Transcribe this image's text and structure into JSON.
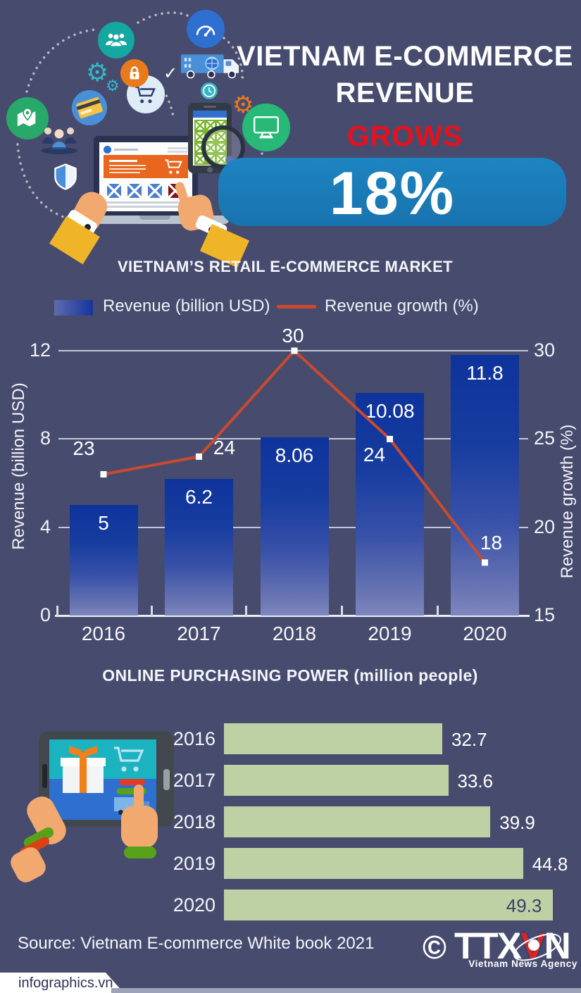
{
  "header": {
    "title_line1": "VIETNAM E-COMMERCE",
    "title_line2": "REVENUE",
    "grows": "GROWS",
    "rate": "18%"
  },
  "chart_data": [
    {
      "type": "bar+line",
      "title": "VIETNAM’S RETAIL E-COMMERCE MARKET",
      "categories": [
        "2016",
        "2017",
        "2018",
        "2019",
        "2020"
      ],
      "series": [
        {
          "name": "Revenue (billion USD)",
          "type": "bar",
          "axis": "left",
          "values": [
            5,
            6.2,
            8.06,
            10.08,
            11.8
          ],
          "labels": [
            "5",
            "6.2",
            "8.06",
            "10.08",
            "11.8"
          ],
          "color_top": "#0E339B",
          "color_bottom": "#7E87BD"
        },
        {
          "name": "Revenue growth (%)",
          "type": "line",
          "axis": "right",
          "values": [
            23,
            24,
            30,
            24,
            18
          ],
          "labels": [
            "23",
            "24",
            "30",
            "24",
            "18"
          ],
          "color": "#CB4A2E",
          "marker": "white-square"
        }
      ],
      "axes": {
        "left": {
          "label": "Revenue (billion USD)",
          "ticks": [
            0,
            4,
            8,
            12
          ],
          "range": [
            0,
            12
          ]
        },
        "right": {
          "label": "Revenue growth (%)",
          "ticks": [
            15,
            20,
            25,
            30
          ],
          "range": [
            15,
            30
          ]
        }
      },
      "grid": true,
      "legend_position": "top"
    },
    {
      "type": "bar",
      "orientation": "horizontal",
      "title": "ONLINE PURCHASING POWER (million people)",
      "categories": [
        "2016",
        "2017",
        "2018",
        "2019",
        "2020"
      ],
      "values": [
        32.7,
        33.6,
        39.9,
        44.8,
        49.3
      ],
      "labels": [
        "32.7",
        "33.6",
        "39.9",
        "44.8",
        "49.3"
      ],
      "bar_color": "#BDD1A5",
      "xlim": [
        0,
        52
      ]
    }
  ],
  "footer": {
    "source": "Source: Vietnam E-commerce White book 2021",
    "copyright": "©",
    "logo_ttx": "TTX",
    "logo_v": "V",
    "logo_n": "N",
    "agency": "Vietnam News Agency",
    "site": "infographics.vn"
  },
  "icons": {
    "gear_glyph": "⚙",
    "check_glyph": "✓"
  },
  "colors": {
    "background": "#474C6E",
    "banner_blue": "#1A7AB8",
    "grows_red": "#E8101C",
    "bar_gradient_top": "#0E339B",
    "bar_gradient_bottom": "#7E87BD",
    "growth_line": "#CB4A2E",
    "purchasing_bar_green": "#BDD1A5"
  }
}
